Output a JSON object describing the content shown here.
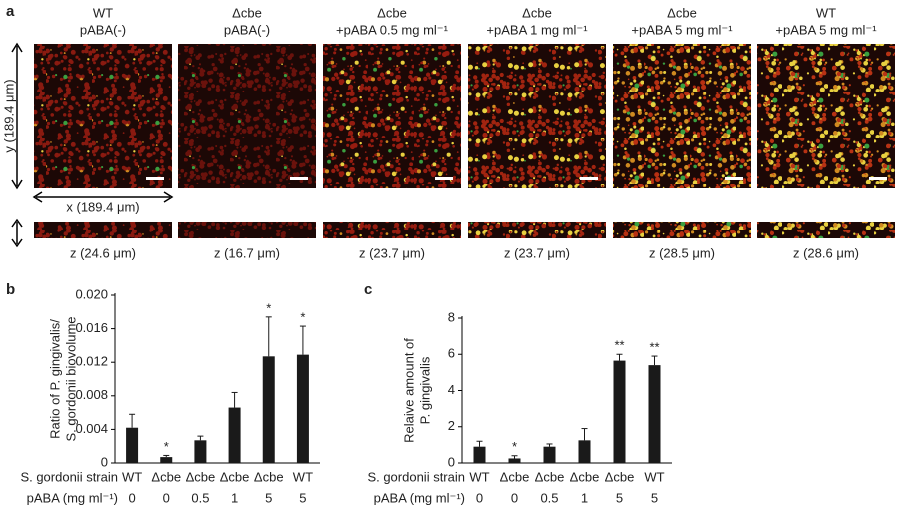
{
  "panel_a": {
    "label": "a",
    "y_axis": "y (189.4 μm)",
    "x_axis": "x (189.4 μm)",
    "columns": [
      {
        "line1": "WT",
        "line2": "pABA(-)",
        "z": "z (24.6 μm)"
      },
      {
        "line1": "Δcbe",
        "line2": "pABA(-)",
        "z": "z (16.7 μm)"
      },
      {
        "line1": "Δcbe",
        "line2": "+pABA 0.5 mg ml⁻¹",
        "z": "z (23.7 μm)"
      },
      {
        "line1": "Δcbe",
        "line2": "+pABA 1 mg ml⁻¹",
        "z": "z (23.7 μm)"
      },
      {
        "line1": "Δcbe",
        "line2": "+pABA 5 mg ml⁻¹",
        "z": "z (28.5 μm)"
      },
      {
        "line1": "WT",
        "line2": "+pABA 5 mg ml⁻¹",
        "z": "z (28.6 μm)"
      }
    ]
  },
  "chart_data": [
    {
      "type": "bar",
      "panel": "b",
      "ylabel": [
        "Ratio of P. gingivalis/",
        "S. gordonii biovolume"
      ],
      "row_labels": [
        "S. gordonii strain",
        "pABA (mg ml⁻¹)"
      ],
      "categories": [
        "WT",
        "Δcbe",
        "Δcbe",
        "Δcbe",
        "Δcbe",
        "WT"
      ],
      "pABA": [
        "0",
        "0",
        "0.5",
        "1",
        "5",
        "5"
      ],
      "values": [
        0.0042,
        0.0007,
        0.0027,
        0.0066,
        0.0127,
        0.0129
      ],
      "errors": [
        0.0016,
        0.0002,
        0.0005,
        0.0018,
        0.0047,
        0.0034
      ],
      "significance": [
        null,
        "*",
        null,
        null,
        "*",
        "*"
      ],
      "color": "#1a1a1a",
      "ylim": [
        0,
        0.02
      ],
      "yticks": [
        0,
        0.004,
        0.008,
        0.012,
        0.016,
        {
          "value": 0.02,
          "label": "0.020"
        }
      ]
    },
    {
      "type": "bar",
      "panel": "c",
      "ylabel": [
        "Relaive amount of",
        "P. gingivalis"
      ],
      "row_labels": [
        "S. gordonii strain",
        "pABA (mg ml⁻¹)"
      ],
      "categories": [
        "WT",
        "Δcbe",
        "Δcbe",
        "Δcbe",
        "Δcbe",
        "WT"
      ],
      "pABA": [
        "0",
        "0",
        "0.5",
        "1",
        "5",
        "5"
      ],
      "values": [
        0.9,
        0.25,
        0.9,
        1.25,
        5.65,
        5.4
      ],
      "errors": [
        0.3,
        0.15,
        0.15,
        0.65,
        0.35,
        0.5
      ],
      "significance": [
        null,
        "*",
        null,
        null,
        "**",
        "**"
      ],
      "color": "#1a1a1a",
      "ylim": [
        0,
        8
      ],
      "yticks": [
        0,
        2,
        4,
        6,
        8
      ]
    }
  ]
}
